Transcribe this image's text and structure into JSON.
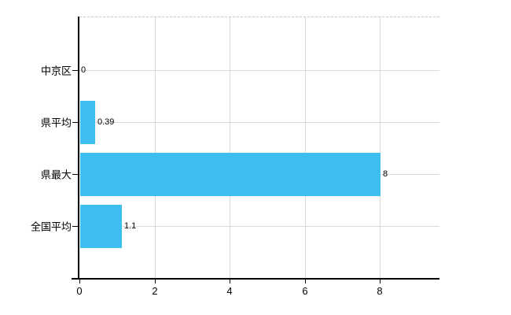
{
  "chart_data": {
    "type": "bar",
    "orientation": "horizontal",
    "title": "",
    "xlabel": "",
    "ylabel": "",
    "categories": [
      "中京区",
      "県平均",
      "県最大",
      "全国平均"
    ],
    "values": [
      0,
      0.39,
      8,
      1.1
    ],
    "value_labels": [
      "0",
      "0.39",
      "8",
      "1.1"
    ],
    "x_ticks": [
      0,
      2,
      4,
      6,
      8
    ],
    "x_tick_labels": [
      "0",
      "2",
      "4",
      "6",
      "8"
    ],
    "xlim": [
      0,
      9.6
    ],
    "grid": true,
    "legend": false,
    "colors": {
      "bar": "#3dbeef",
      "grid": "#d9ddd8",
      "axis": "#000000",
      "text": "#000000",
      "frame_dashed": "#c9c9cd",
      "background": "#ffffff"
    }
  }
}
